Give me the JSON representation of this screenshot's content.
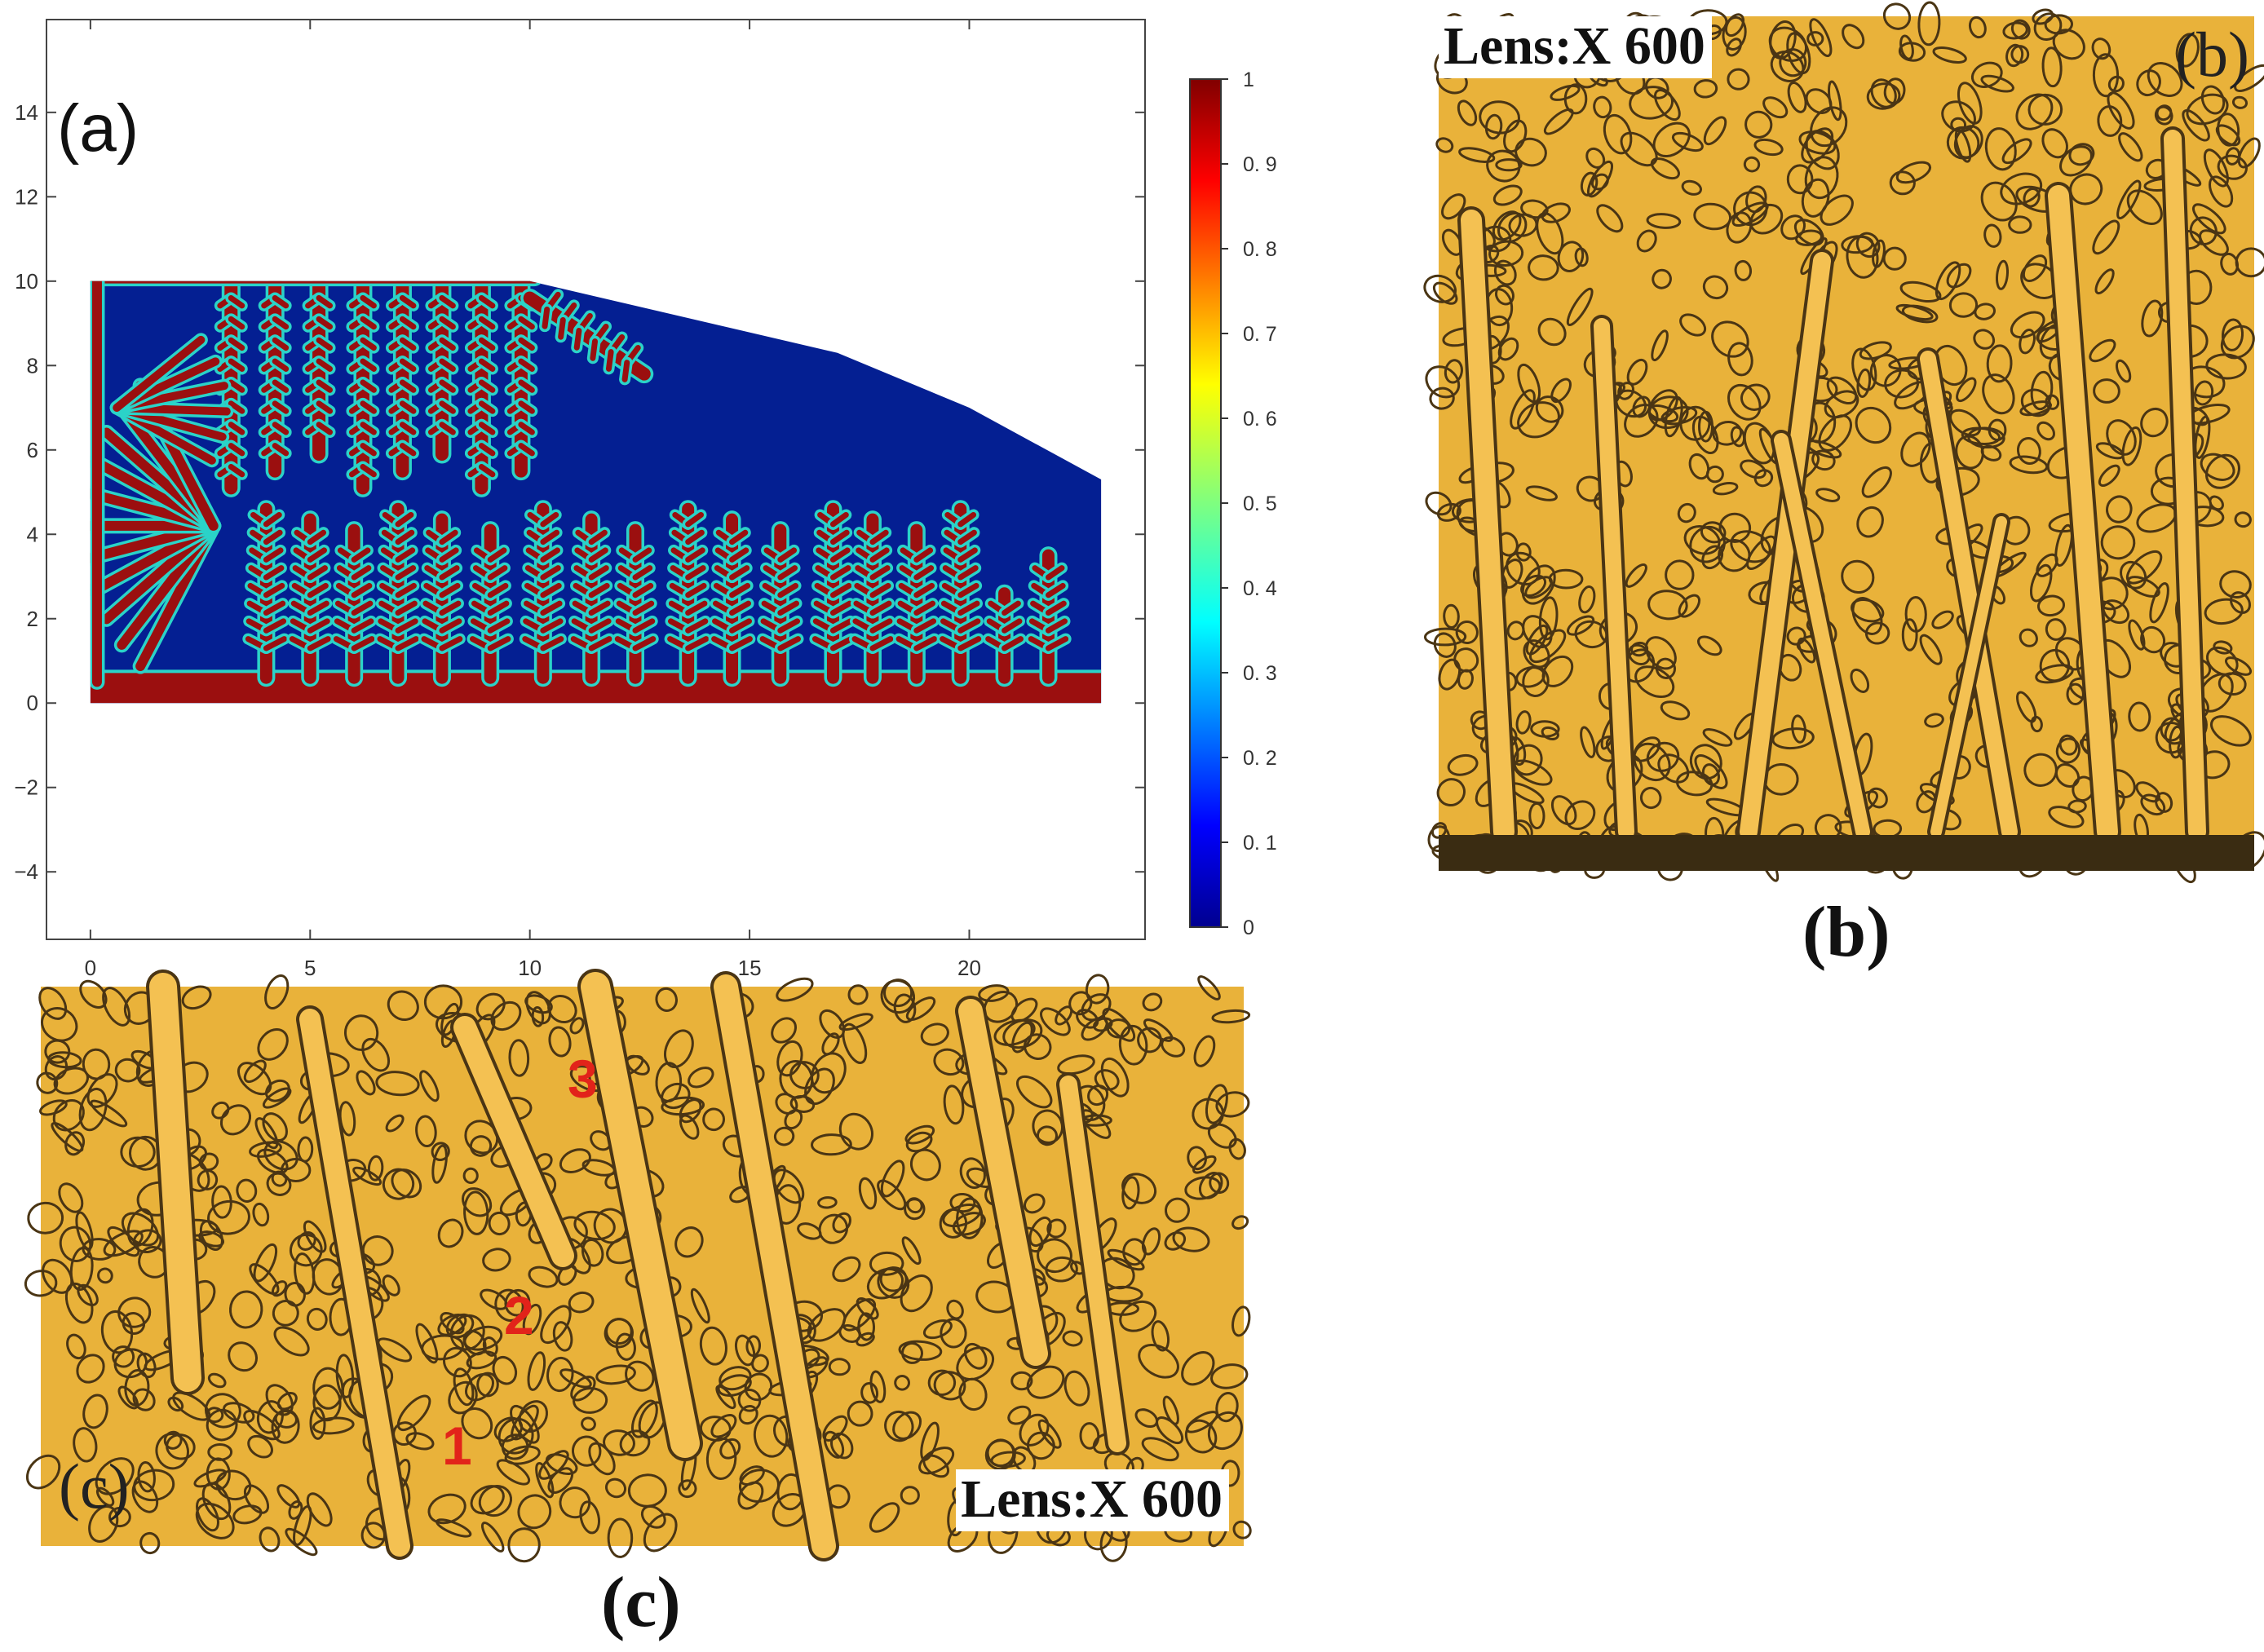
{
  "panel_a": {
    "label": "(a)",
    "chart_data": {
      "type": "heatmap",
      "x_ticks": [
        0,
        5,
        10,
        15,
        20
      ],
      "y_ticks": [
        -4,
        -2,
        0,
        2,
        4,
        6,
        8,
        10,
        12,
        14
      ],
      "xlim": [
        -1,
        24
      ],
      "ylim": [
        -5.6,
        16.2
      ],
      "domain_outline": [
        [
          0,
          0
        ],
        [
          0,
          10
        ],
        [
          10,
          10
        ],
        [
          17,
          8.3
        ],
        [
          20,
          7
        ],
        [
          23,
          5.3
        ],
        [
          23,
          0
        ]
      ],
      "colorbar": {
        "range": [
          0,
          1
        ],
        "ticks": [
          "0",
          "0. 1",
          "0. 2",
          "0. 3",
          "0. 4",
          "0. 5",
          "0. 6",
          "0. 7",
          "0. 8",
          "0. 9",
          "1"
        ]
      },
      "colors": {
        "solid": "#9b0f0f",
        "liquid": "#041f92",
        "interface": "#2bd3c8"
      }
    }
  },
  "panel_b": {
    "lens_label": "Lens:X 600",
    "inner_label": "(b)",
    "caption": "(b)"
  },
  "panel_c": {
    "lens_label": "Lens:X 600",
    "inner_label": "(c)",
    "caption": "(c)",
    "markers": [
      "1",
      "2",
      "3"
    ]
  },
  "colors": {
    "micrograph_base": "#e9b23a",
    "micrograph_boundary": "#4a3514",
    "marker": "#e2231a"
  }
}
